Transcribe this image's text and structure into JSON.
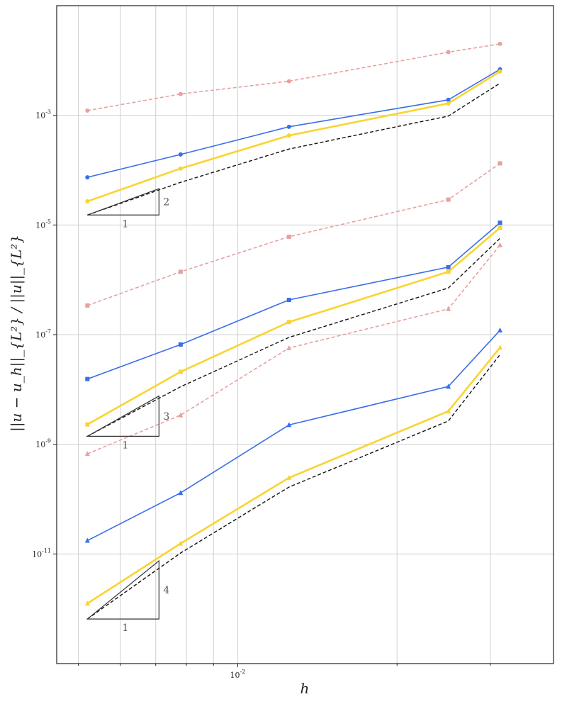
{
  "chart_data": {
    "type": "line",
    "xscale": "log",
    "yscale": "log",
    "xlabel": "h",
    "ylabel": "||u − u_h||_{L²} / ||u||_{L²}",
    "xlim": [
      0.00455,
      0.0395
    ],
    "ylim": [
      1e-13,
      0.1
    ],
    "x_tick_label": "10^{-2}",
    "y_tick_labels": [
      "10^{-3}",
      "10^{-5}",
      "10^{-7}",
      "10^{-9}",
      "10^{-11}"
    ],
    "grid": true,
    "x": [
      0.0052,
      0.0078,
      0.0125,
      0.025,
      0.0313
    ],
    "series": [
      {
        "name": "k1-ref",
        "color": "#e8a0a0",
        "dash": true,
        "marker": "circle",
        "values": [
          0.00122,
          0.00245,
          0.00418,
          0.0142,
          0.0201
        ]
      },
      {
        "name": "k1-blue",
        "color": "#3a6ee8",
        "dash": false,
        "marker": "circle",
        "values": [
          7.4e-05,
          0.000193,
          0.000618,
          0.00192,
          0.0069
        ]
      },
      {
        "name": "k1-yellow",
        "color": "#f9d431",
        "dash": false,
        "marker": "circle",
        "values": [
          2.7e-05,
          0.000107,
          0.000429,
          0.00165,
          0.0063
        ]
      },
      {
        "name": "k1-slope",
        "color": "#111111",
        "dash": true,
        "marker": "none",
        "values": [
          1.52e-05,
          6e-05,
          0.000243,
          0.00097,
          0.00385
        ]
      },
      {
        "name": "k2-ref",
        "color": "#e8a0a0",
        "dash": true,
        "marker": "square",
        "values": [
          3.4e-07,
          1.4e-06,
          6.1e-06,
          2.9e-05,
          0.000133
        ]
      },
      {
        "name": "k2-blue",
        "color": "#3a6ee8",
        "dash": false,
        "marker": "square",
        "values": [
          1.55e-08,
          6.6e-08,
          4.3e-07,
          1.7e-06,
          1.1e-05
        ]
      },
      {
        "name": "k2-yellow",
        "color": "#f9d431",
        "dash": false,
        "marker": "square",
        "values": [
          2.3e-09,
          2.1e-08,
          1.7e-07,
          1.4e-06,
          8.9e-06
        ]
      },
      {
        "name": "k2-slope",
        "color": "#111111",
        "dash": true,
        "marker": "none",
        "values": [
          1.4e-09,
          1.12e-08,
          8.9e-08,
          7.1e-07,
          5.7e-06
        ]
      },
      {
        "name": "k2-ref-tri",
        "color": "#e8a0a0",
        "dash": true,
        "marker": "triangle",
        "values": [
          6.7e-10,
          3.4e-09,
          5.7e-08,
          2.95e-07,
          4.3e-06
        ]
      },
      {
        "name": "k3-blue",
        "color": "#3a6ee8",
        "dash": false,
        "marker": "triangle",
        "values": [
          1.75e-11,
          1.3e-10,
          2.25e-09,
          1.13e-08,
          1.2e-07
        ]
      },
      {
        "name": "k3-yellow",
        "color": "#f9d431",
        "dash": false,
        "marker": "triangle",
        "values": [
          1.25e-12,
          1.55e-11,
          2.45e-10,
          4e-09,
          5.8e-08
        ]
      },
      {
        "name": "k3-slope",
        "color": "#111111",
        "dash": true,
        "marker": "none",
        "values": [
          6.5e-13,
          1.04e-11,
          1.66e-10,
          2.66e-09,
          4.3e-08
        ]
      }
    ],
    "slope_triangles": [
      {
        "order_label": "2",
        "base_label": "1",
        "x0": 0.0052,
        "x1": 0.0071,
        "y0": 1.52e-05,
        "y1": 4.6e-05
      },
      {
        "order_label": "3",
        "base_label": "1",
        "x0": 0.0052,
        "x1": 0.0071,
        "y0": 1.4e-09,
        "y1": 7.6e-09
      },
      {
        "order_label": "4",
        "base_label": "1",
        "x0": 0.0052,
        "x1": 0.0071,
        "y0": 6.5e-13,
        "y1": 7.5e-12
      }
    ]
  }
}
